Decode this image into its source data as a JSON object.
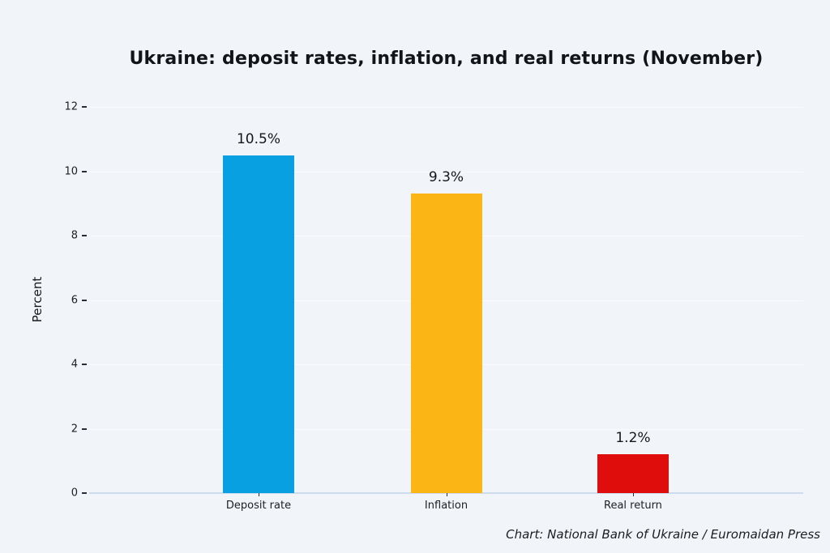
{
  "chart_data": {
    "type": "bar",
    "title": "Ukraine: deposit rates, inflation, and real returns (November)",
    "categories": [
      "Deposit rate",
      "Inflation",
      "Real return"
    ],
    "values": [
      10.5,
      9.3,
      1.2
    ],
    "value_labels": [
      "10.5%",
      "9.3%",
      "1.2%"
    ],
    "bar_colors": [
      "#09a0e1",
      "#fbb615",
      "#e00d0d"
    ],
    "xlabel": "",
    "ylabel": "Percent",
    "ylim": [
      0,
      12
    ],
    "yticks": [
      0,
      2,
      4,
      6,
      8,
      10,
      12
    ],
    "grid": "horizontal-faint",
    "legend_position": "none",
    "caption": "Chart: National Bank of Ukraine / Euromaidan Press",
    "background_color": "#f1f4f8",
    "baseline_color": "#ccdcec"
  },
  "layout_hints": {
    "bar_center_fractions": [
      0.2372,
      0.5,
      0.7616
    ]
  }
}
